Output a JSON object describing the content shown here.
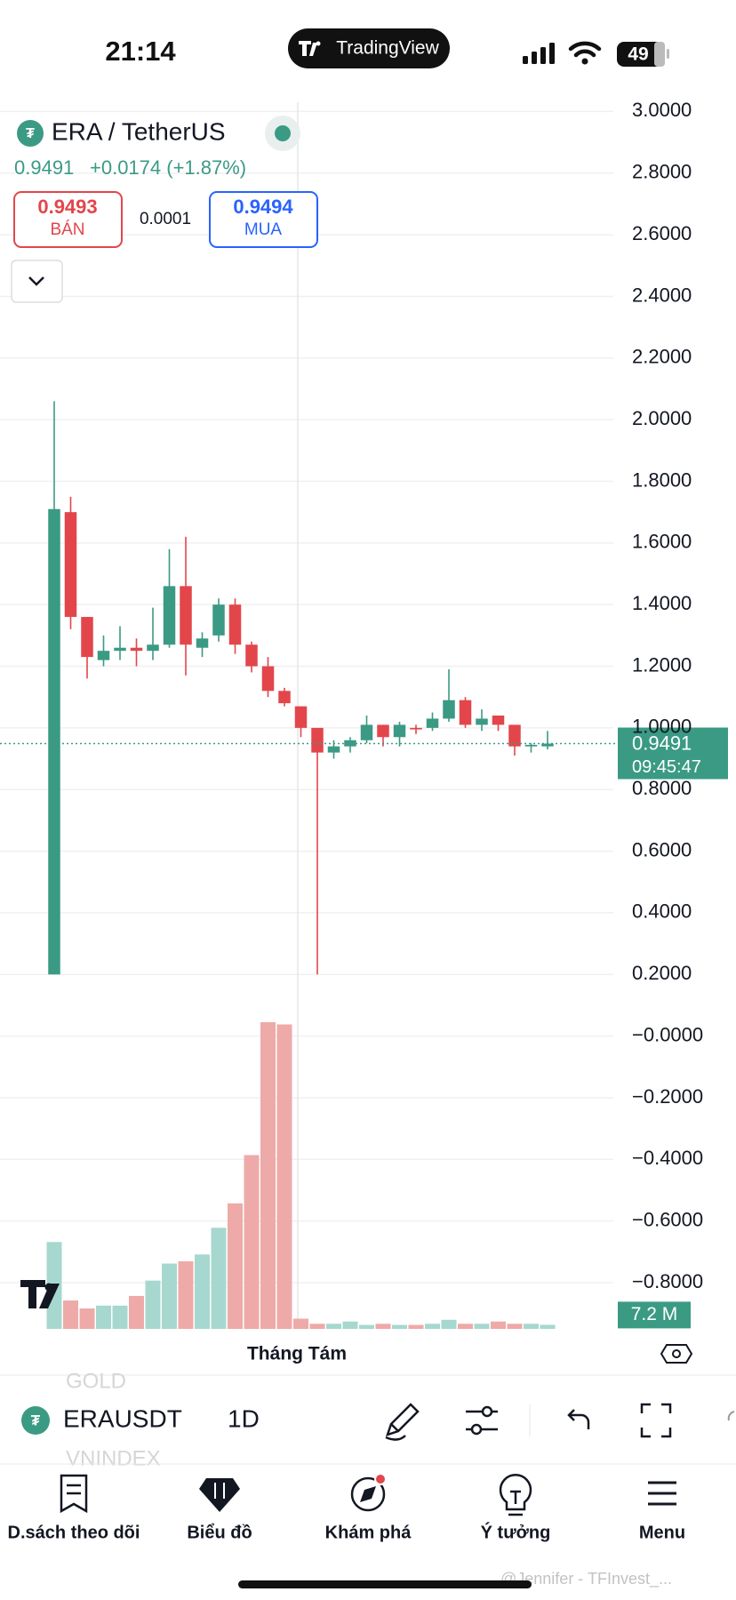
{
  "status_bar": {
    "time": "21:14",
    "app_badge": "TradingView",
    "battery": "49"
  },
  "header": {
    "symbol": "ERA / TetherUS",
    "last": "0.9491",
    "change": "+0.0174 (+1.87%)",
    "sell_price": "0.9493",
    "sell_label": "BÁN",
    "spread": "0.0001",
    "buy_price": "0.9494",
    "buy_label": "MUA"
  },
  "chart_data": {
    "type": "candlestick",
    "xlabel": "Tháng Tám",
    "open": [
      0.2,
      1.7,
      1.36,
      1.22,
      1.25,
      1.26,
      1.25,
      1.27,
      1.46,
      1.26,
      1.3,
      1.4,
      1.27,
      1.2,
      1.12,
      1.07,
      1.0,
      0.92,
      0.94,
      0.96,
      1.01,
      0.97,
      1.0,
      1.0,
      1.03,
      1.09,
      1.01,
      1.04,
      1.01,
      0.94,
      0.94
    ],
    "high": [
      2.06,
      1.75,
      1.36,
      1.3,
      1.33,
      1.29,
      1.39,
      1.58,
      1.62,
      1.31,
      1.42,
      1.42,
      1.28,
      1.23,
      1.13,
      1.07,
      1.0,
      0.96,
      0.97,
      1.04,
      1.01,
      1.02,
      1.01,
      1.05,
      1.19,
      1.1,
      1.06,
      1.04,
      1.01,
      0.95,
      0.99
    ],
    "low": [
      0.2,
      1.32,
      1.16,
      1.2,
      1.22,
      1.2,
      1.22,
      1.26,
      1.17,
      1.23,
      1.28,
      1.24,
      1.18,
      1.1,
      1.07,
      0.97,
      0.2,
      0.9,
      0.92,
      0.95,
      0.94,
      0.94,
      0.98,
      0.99,
      1.02,
      1.0,
      0.99,
      0.99,
      0.91,
      0.92,
      0.93
    ],
    "close": [
      1.71,
      1.36,
      1.23,
      1.25,
      1.26,
      1.25,
      1.27,
      1.46,
      1.27,
      1.29,
      1.4,
      1.27,
      1.2,
      1.12,
      1.08,
      1.0,
      0.92,
      0.94,
      0.96,
      1.01,
      0.97,
      1.01,
      0.995,
      1.03,
      1.09,
      1.01,
      1.03,
      1.01,
      0.94,
      0.945,
      0.9491
    ],
    "volume": [
      153,
      50,
      36,
      41,
      41,
      58,
      85,
      115,
      119,
      131,
      178,
      221,
      306,
      540,
      536,
      18,
      9,
      9,
      13,
      7,
      9,
      7,
      7,
      9,
      16,
      9,
      9,
      13,
      9,
      9,
      7.2
    ],
    "volume_last_label": "7.2 M",
    "last_price": 0.9491,
    "last_price_label": "0.9491",
    "countdown": "09:45:47",
    "up_color": "#3b9a84",
    "down_color": "#e2464b",
    "up_volume_color": "#a6d8cf",
    "down_volume_color": "#eeaaa8",
    "ylim": [
      -0.95,
      3.03
    ],
    "yticks": [
      {
        "value": 3.0,
        "label": "3.0000"
      },
      {
        "value": 2.8,
        "label": "2.8000"
      },
      {
        "value": 2.6,
        "label": "2.6000"
      },
      {
        "value": 2.4,
        "label": "2.4000"
      },
      {
        "value": 2.2,
        "label": "2.2000"
      },
      {
        "value": 2.0,
        "label": "2.0000"
      },
      {
        "value": 1.8,
        "label": "1.8000"
      },
      {
        "value": 1.6,
        "label": "1.6000"
      },
      {
        "value": 1.4,
        "label": "1.4000"
      },
      {
        "value": 1.2,
        "label": "1.2000"
      },
      {
        "value": 1.0,
        "label": "1.0000"
      },
      {
        "value": 0.8,
        "label": "0.8000"
      },
      {
        "value": 0.6,
        "label": "0.6000"
      },
      {
        "value": 0.4,
        "label": "0.4000"
      },
      {
        "value": 0.2,
        "label": "0.2000"
      },
      {
        "value": 0,
        "label": "−0.0000"
      },
      {
        "value": -0.2,
        "label": "−0.2000"
      },
      {
        "value": -0.4,
        "label": "−0.4000"
      },
      {
        "value": -0.6,
        "label": "−0.6000"
      },
      {
        "value": -0.8,
        "label": "−0.8000"
      }
    ],
    "grid": true
  },
  "toolbar": {
    "ghost_above": "GOLD",
    "symbol": "ERAUSDT",
    "interval": "1D",
    "ghost_below": "VNINDEX"
  },
  "nav": [
    "D.sách theo dõi",
    "Biểu đồ",
    "Khám phá",
    "Ý tưởng",
    "Menu"
  ],
  "watermark": "@Jennifer - TFInvest_..."
}
